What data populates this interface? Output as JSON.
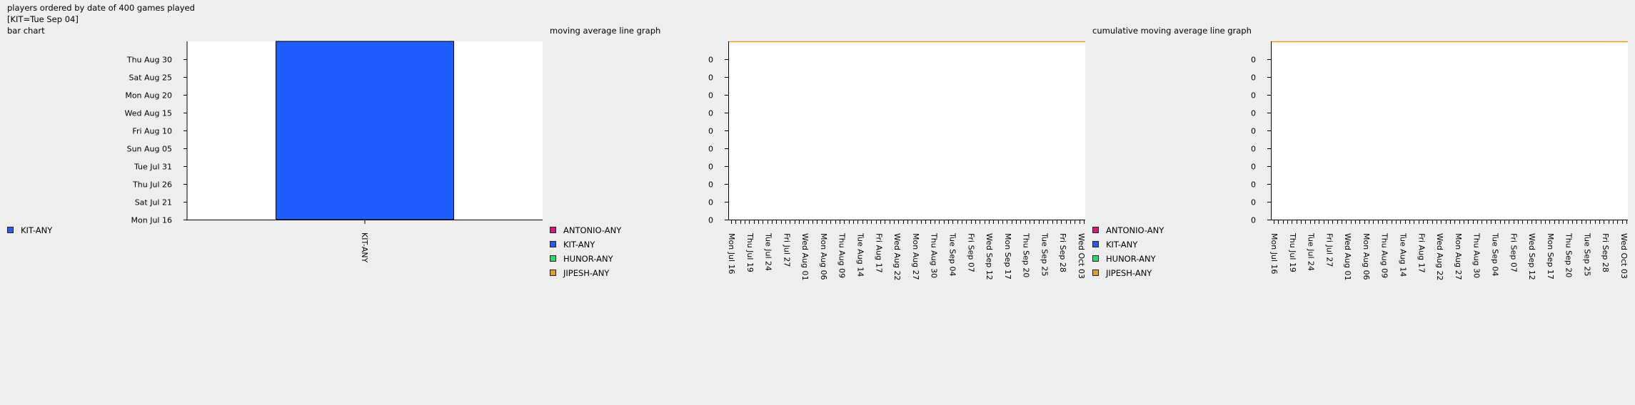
{
  "header": {
    "line1": "players ordered by date of 400 games played",
    "line2": "[KIT=Tue Sep 04]"
  },
  "bar_title": "bar chart",
  "moving_title": "moving average line graph",
  "cumulative_title": "cumulative moving average line graph",
  "colors": {
    "ANTONIO-ANY": "#e0147c",
    "KIT-ANY": "#1f5dff",
    "HUNOR-ANY": "#22dd66",
    "JIPESH-ANY": "#e6a11a"
  },
  "bar_legend": [
    "KIT-ANY"
  ],
  "line_legend": [
    "ANTONIO-ANY",
    "KIT-ANY",
    "HUNOR-ANY",
    "JIPESH-ANY"
  ],
  "chart_data": [
    {
      "type": "bar",
      "title": "bar chart",
      "categories": [
        "KIT-ANY"
      ],
      "values": [
        "Tue Sep 04"
      ],
      "y_ticks": [
        "Mon Jul 16",
        "Sat Jul 21",
        "Thu Jul 26",
        "Tue Jul 31",
        "Sun Aug 05",
        "Fri Aug 10",
        "Wed Aug 15",
        "Mon Aug 20",
        "Sat Aug 25",
        "Thu Aug 30"
      ],
      "ylim": [
        "Mon Jul 16",
        "Tue Sep 04"
      ],
      "legend": [
        "KIT-ANY"
      ]
    },
    {
      "type": "line",
      "title": "moving average line graph",
      "y_ticks": [
        "0",
        "0",
        "0",
        "0",
        "0",
        "0",
        "0",
        "0",
        "0",
        "0"
      ],
      "x_tick_labels": [
        "Mon Jul 16",
        "Thu Jul 19",
        "Tue Jul 24",
        "Fri Jul 27",
        "Wed Aug 01",
        "Mon Aug 06",
        "Thu Aug 09",
        "Tue Aug 14",
        "Fri Aug 17",
        "Wed Aug 22",
        "Mon Aug 27",
        "Thu Aug 30",
        "Tue Sep 04",
        "Fri Sep 07",
        "Wed Sep 12",
        "Mon Sep 17",
        "Thu Sep 20",
        "Tue Sep 25",
        "Fri Sep 28",
        "Wed Oct 03"
      ],
      "series": [
        {
          "name": "ANTONIO-ANY",
          "values": []
        },
        {
          "name": "KIT-ANY",
          "values": []
        },
        {
          "name": "HUNOR-ANY",
          "values": []
        },
        {
          "name": "JIPESH-ANY",
          "values": [
            0,
            0
          ]
        }
      ]
    },
    {
      "type": "line",
      "title": "cumulative moving average line graph",
      "y_ticks": [
        "0",
        "0",
        "0",
        "0",
        "0",
        "0",
        "0",
        "0",
        "0",
        "0"
      ],
      "x_tick_labels": [
        "Mon Jul 16",
        "Thu Jul 19",
        "Tue Jul 24",
        "Fri Jul 27",
        "Wed Aug 01",
        "Mon Aug 06",
        "Thu Aug 09",
        "Tue Aug 14",
        "Fri Aug 17",
        "Wed Aug 22",
        "Mon Aug 27",
        "Thu Aug 30",
        "Tue Sep 04",
        "Fri Sep 07",
        "Wed Sep 12",
        "Mon Sep 17",
        "Thu Sep 20",
        "Tue Sep 25",
        "Fri Sep 28",
        "Wed Oct 03"
      ],
      "series": [
        {
          "name": "ANTONIO-ANY",
          "values": []
        },
        {
          "name": "KIT-ANY",
          "values": []
        },
        {
          "name": "HUNOR-ANY",
          "values": []
        },
        {
          "name": "JIPESH-ANY",
          "values": [
            0,
            0
          ]
        }
      ]
    }
  ]
}
